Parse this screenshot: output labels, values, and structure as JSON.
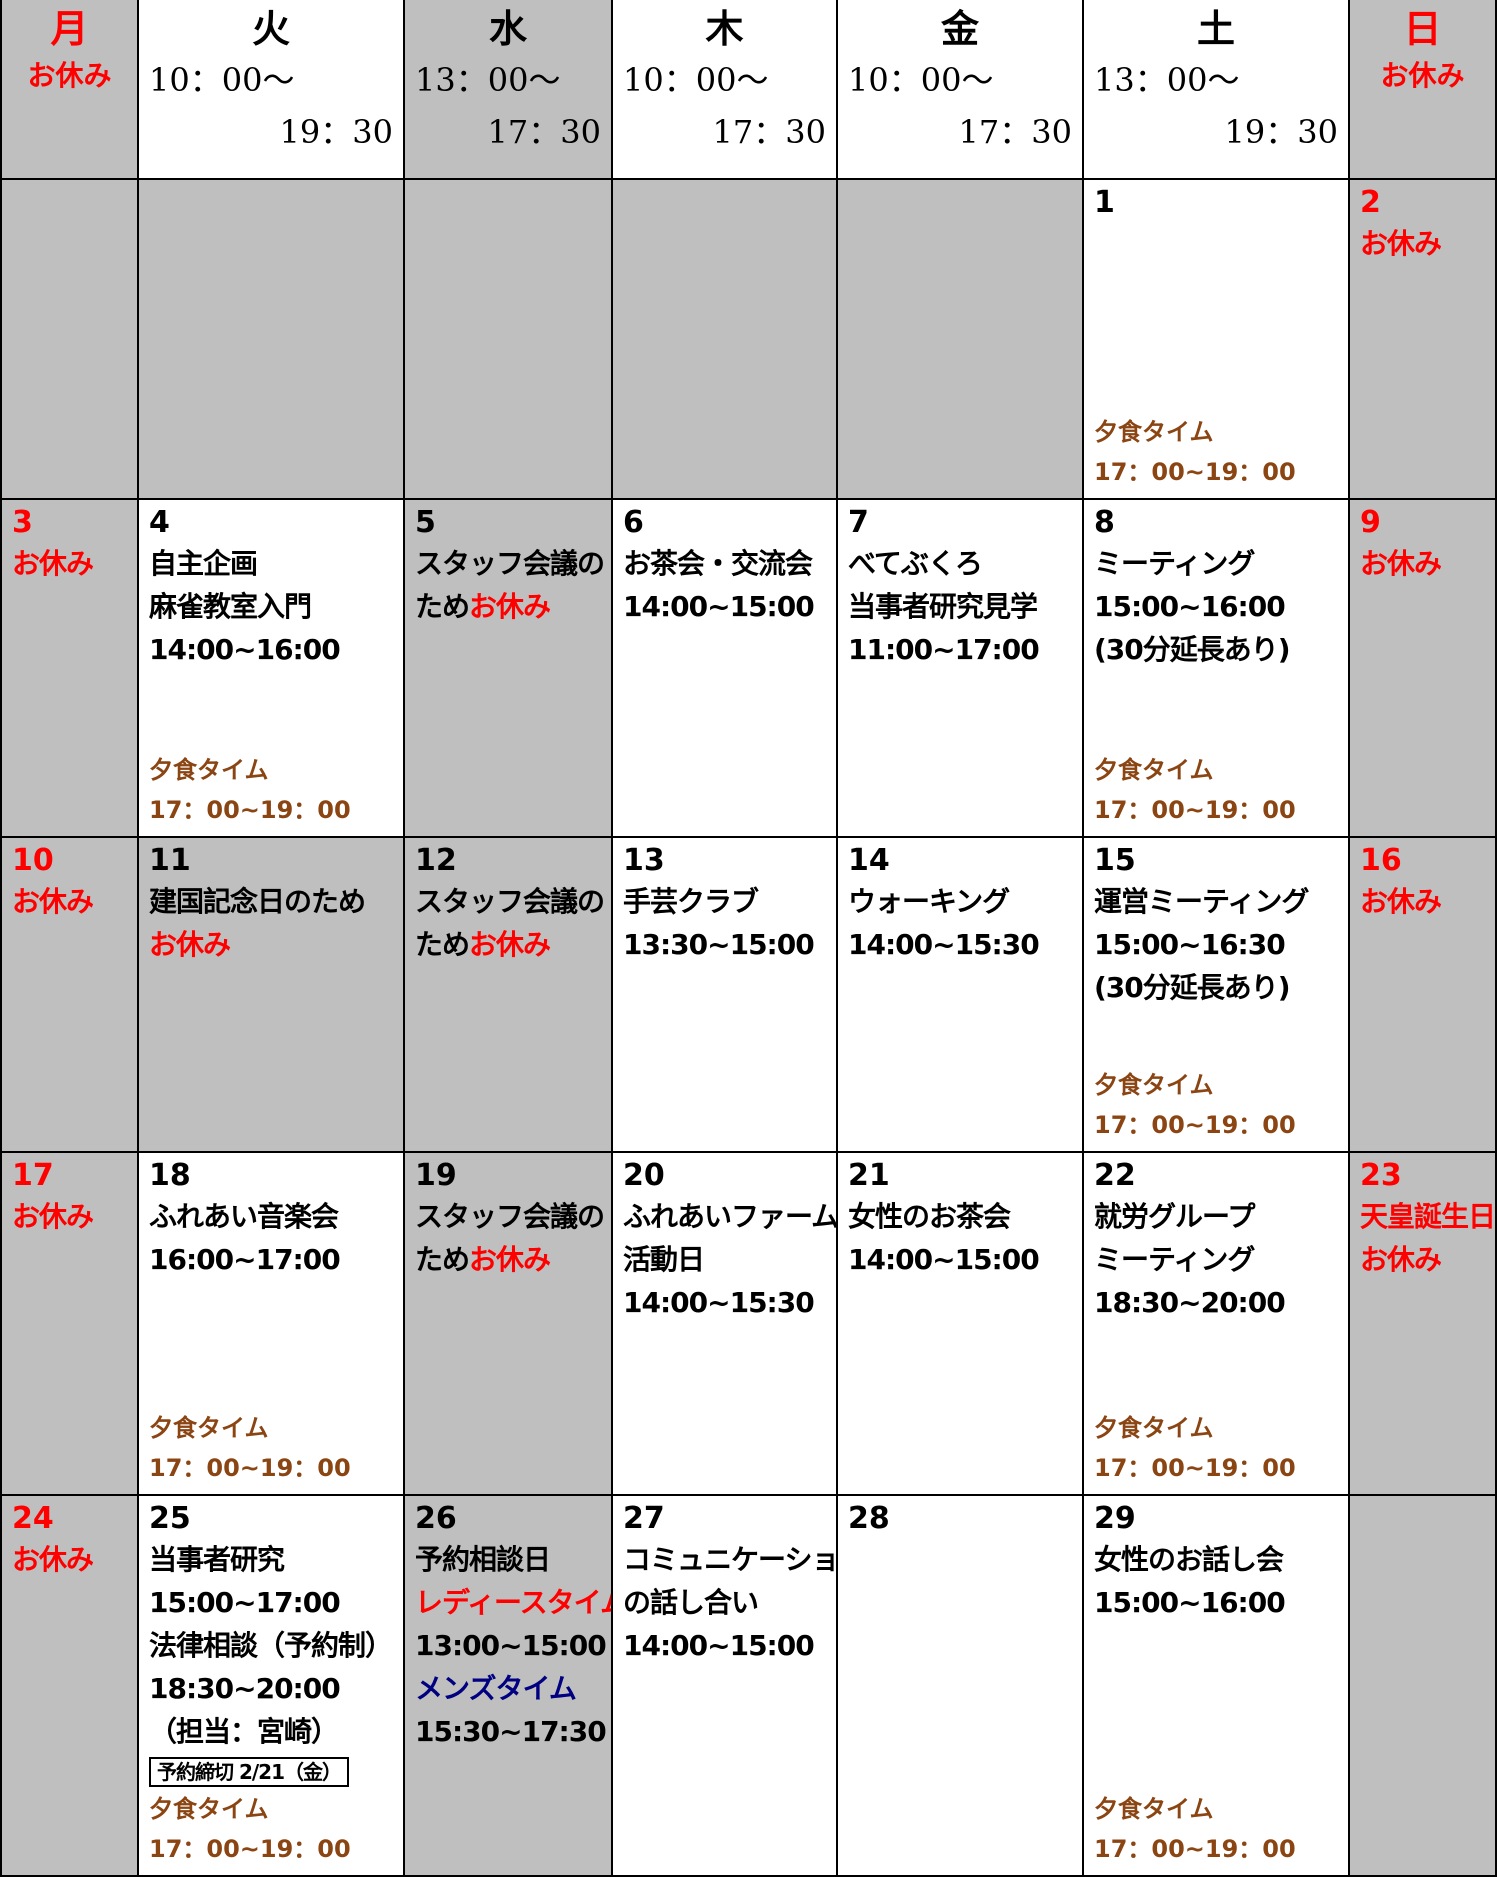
{
  "header": {
    "days": [
      {
        "name": "月",
        "color": "red",
        "shaded": true,
        "note": "お休み"
      },
      {
        "name": "火",
        "start": "10：00～",
        "end": "19：30"
      },
      {
        "name": "水",
        "shaded": true,
        "start": "13：00～",
        "end": "17：30"
      },
      {
        "name": "木",
        "start": "10：00～",
        "end": "17：30"
      },
      {
        "name": "金",
        "start": "10：00～",
        "end": "17：30"
      },
      {
        "name": "土",
        "start": "13：00～",
        "end": "19：30"
      },
      {
        "name": "日",
        "color": "red",
        "shaded": true,
        "note": "お休み"
      }
    ]
  },
  "weeks": [
    {
      "cells": [
        {
          "shaded": true
        },
        {
          "shaded": true
        },
        {
          "shaded": true
        },
        {
          "shaded": true
        },
        {
          "shaded": true
        },
        {
          "date": "1",
          "lines": [],
          "dinner": {
            "label": "夕食タイム",
            "time": "17：00~19：00"
          }
        },
        {
          "date": "2",
          "shaded": true,
          "lines": [
            {
              "text": "お休み",
              "color": "red"
            }
          ]
        }
      ]
    },
    {
      "cells": [
        {
          "date": "3",
          "shaded": true,
          "lines": [
            {
              "text": "お休み",
              "color": "red"
            }
          ]
        },
        {
          "date": "4",
          "lines": [
            "自主企画",
            "麻雀教室入門",
            "14:00~16:00"
          ],
          "dinner": {
            "label": "夕食タイム",
            "time": "17：00~19：00"
          }
        },
        {
          "date": "5",
          "shaded": true,
          "lines": [
            "スタッフ会議の",
            [
              "ため",
              {
                "text": "お休み",
                "color": "red"
              }
            ]
          ]
        },
        {
          "date": "6",
          "lines": [
            "お茶会・交流会",
            "14:00~15:00"
          ]
        },
        {
          "date": "7",
          "lines": [
            "べてぶくろ",
            "当事者研究見学",
            "11:00~17:00"
          ]
        },
        {
          "date": "8",
          "lines": [
            "ミーティング",
            "15:00~16:00",
            "(30分延長あり)"
          ],
          "dinner": {
            "label": "夕食タイム",
            "time": "17：00~19：00"
          }
        },
        {
          "date": "9",
          "shaded": true,
          "lines": [
            {
              "text": "お休み",
              "color": "red"
            }
          ]
        }
      ]
    },
    {
      "cells": [
        {
          "date": "10",
          "shaded": true,
          "lines": [
            {
              "text": "お休み",
              "color": "red"
            }
          ]
        },
        {
          "date": "11",
          "shaded": true,
          "lines": [
            "建国記念日のため",
            {
              "text": "お休み",
              "color": "red"
            }
          ]
        },
        {
          "date": "12",
          "shaded": true,
          "lines": [
            "スタッフ会議の",
            [
              "ため",
              {
                "text": "お休み",
                "color": "red"
              }
            ]
          ]
        },
        {
          "date": "13",
          "lines": [
            "手芸クラブ",
            "13:30~15:00"
          ]
        },
        {
          "date": "14",
          "lines": [
            "ウォーキング",
            "14:00~15:30"
          ]
        },
        {
          "date": "15",
          "lines": [
            "運営ミーティング",
            "15:00~16:30",
            "(30分延長あり)"
          ],
          "dinner": {
            "label": "夕食タイム",
            "time": "17：00~19：00"
          }
        },
        {
          "date": "16",
          "shaded": true,
          "lines": [
            {
              "text": "お休み",
              "color": "red"
            }
          ]
        }
      ]
    },
    {
      "cells": [
        {
          "date": "17",
          "shaded": true,
          "lines": [
            {
              "text": "お休み",
              "color": "red"
            }
          ]
        },
        {
          "date": "18",
          "lines": [
            "ふれあい音楽会",
            "16:00~17:00"
          ],
          "dinner": {
            "label": "夕食タイム",
            "time": "17：00~19：00"
          }
        },
        {
          "date": "19",
          "shaded": true,
          "lines": [
            "スタッフ会議の",
            [
              "ため",
              {
                "text": "お休み",
                "color": "red"
              }
            ]
          ]
        },
        {
          "date": "20",
          "lines": [
            "ふれあいファーム",
            "活動日",
            "14:00~15:30"
          ]
        },
        {
          "date": "21",
          "lines": [
            "女性のお茶会",
            "14:00~15:00"
          ]
        },
        {
          "date": "22",
          "lines": [
            "就労グループ",
            "ミーティング",
            "18:30~20:00"
          ],
          "dinner": {
            "label": "夕食タイム",
            "time": "17：00~19：00"
          }
        },
        {
          "date": "23",
          "shaded": true,
          "lines": [
            {
              "text": "天皇誕生日",
              "color": "red"
            },
            {
              "text": "お休み",
              "color": "red"
            }
          ]
        }
      ]
    },
    {
      "cells": [
        {
          "date": "24",
          "shaded": true,
          "lines": [
            {
              "text": "お休み",
              "color": "red"
            }
          ]
        },
        {
          "date": "25",
          "lines": [
            "当事者研究",
            "15:00~17:00",
            "法律相談（予約制）",
            "18:30~20:00",
            "（担当：宮崎）",
            {
              "text": "予約締切 2/21（金）",
              "boxed": true
            }
          ],
          "dinner": {
            "label": "夕食タイム",
            "time": "17：00~19：00"
          }
        },
        {
          "date": "26",
          "shaded": true,
          "lines": [
            "予約相談日",
            {
              "text": "レディースタイム",
              "color": "red"
            },
            "13:00~15:00",
            {
              "text": "メンズタイム",
              "color": "navy"
            },
            "15:30~17:30"
          ]
        },
        {
          "date": "27",
          "lines": [
            "コミュニケーション",
            "の話し合い",
            "14:00~15:00"
          ]
        },
        {
          "date": "28",
          "lines": []
        },
        {
          "date": "29",
          "lines": [
            "女性のお話し会",
            "15:00~16:00"
          ],
          "dinner": {
            "label": "夕食タイム",
            "time": "17：00~19：00"
          }
        },
        {
          "shaded": true
        }
      ]
    }
  ]
}
